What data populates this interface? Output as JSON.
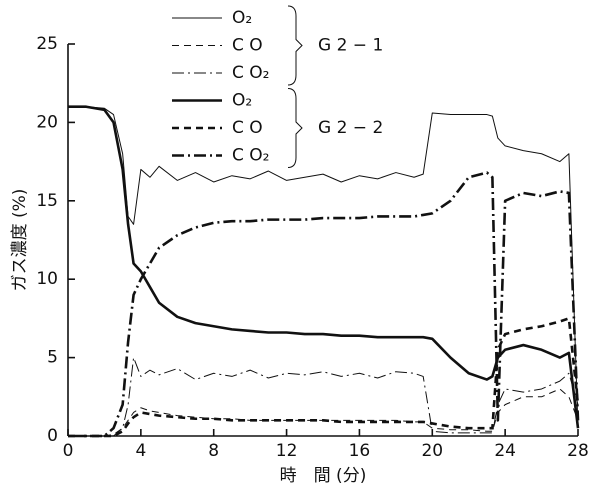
{
  "chart_data": {
    "type": "line",
    "x_label": "時　間 (分)",
    "y_label": "ガス濃度 (%)",
    "x": [
      0,
      1,
      2,
      2.5,
      3,
      3.3,
      3.6,
      4,
      4.5,
      5,
      6,
      7,
      8,
      9,
      10,
      11,
      12,
      13,
      14,
      15,
      16,
      17,
      18,
      19,
      19.5,
      20,
      21,
      22,
      23,
      23.3,
      23.6,
      24,
      25,
      26,
      27,
      27.5,
      28
    ],
    "series": [
      {
        "name": "O₂",
        "color": "#111111",
        "width": 1,
        "dash": "solid",
        "values": [
          21,
          21,
          20.9,
          20.5,
          18,
          14,
          13.5,
          17,
          16.5,
          17.2,
          16.3,
          16.8,
          16.2,
          16.6,
          16.4,
          16.9,
          16.3,
          16.5,
          16.7,
          16.2,
          16.6,
          16.4,
          16.8,
          16.5,
          16.7,
          20.6,
          20.5,
          20.5,
          20.5,
          20.4,
          19,
          18.5,
          18.2,
          18,
          17.5,
          18,
          0.5
        ]
      },
      {
        "name": "C O",
        "color": "#111111",
        "width": 1,
        "dash": "dashed",
        "values": [
          0,
          0,
          0,
          0.1,
          0.5,
          1,
          1.5,
          1.8,
          1.6,
          1.5,
          1.3,
          1.2,
          1.1,
          1.1,
          1,
          1,
          1,
          1,
          1,
          1,
          1,
          1,
          1,
          0.9,
          0.9,
          0.5,
          0.4,
          0.4,
          0.3,
          0.3,
          1.5,
          2,
          2.5,
          2.5,
          3,
          2.5,
          1
        ]
      },
      {
        "name": "C O₂",
        "color": "#111111",
        "width": 1,
        "dash": "dashdot",
        "values": [
          0,
          0,
          0,
          0,
          0.5,
          2,
          5,
          3.8,
          4.2,
          3.9,
          4.3,
          3.6,
          4,
          3.8,
          4.2,
          3.7,
          4,
          3.9,
          4.1,
          3.8,
          4,
          3.7,
          4.1,
          4,
          3.8,
          0.3,
          0.2,
          0.2,
          0.2,
          0.2,
          2,
          3,
          2.8,
          3,
          3.5,
          4,
          2
        ]
      },
      {
        "name": "O₂",
        "color": "#111111",
        "width": 2.6,
        "dash": "solid",
        "values": [
          21,
          21,
          20.8,
          20,
          17,
          13.5,
          11,
          10.5,
          9.5,
          8.5,
          7.6,
          7.2,
          7,
          6.8,
          6.7,
          6.6,
          6.6,
          6.5,
          6.5,
          6.4,
          6.4,
          6.3,
          6.3,
          6.3,
          6.3,
          6.2,
          5,
          4,
          3.6,
          3.8,
          5,
          5.5,
          5.8,
          5.5,
          5,
          5.3,
          0.5
        ]
      },
      {
        "name": "C O",
        "color": "#111111",
        "width": 2.6,
        "dash": "dashed",
        "values": [
          0,
          0,
          0,
          0,
          0.3,
          0.8,
          1.2,
          1.5,
          1.4,
          1.3,
          1.2,
          1.1,
          1.1,
          1,
          1,
          1,
          1,
          1,
          1,
          0.9,
          0.9,
          0.9,
          0.9,
          0.9,
          0.9,
          0.8,
          0.6,
          0.5,
          0.5,
          0.5,
          5.5,
          6.5,
          6.8,
          7,
          7.3,
          7.5,
          2
        ]
      },
      {
        "name": "C O₂",
        "color": "#111111",
        "width": 2.6,
        "dash": "dashdot",
        "values": [
          0,
          0,
          0,
          0.5,
          2,
          6,
          9,
          10,
          11,
          12,
          12.8,
          13.3,
          13.6,
          13.7,
          13.7,
          13.8,
          13.8,
          13.8,
          13.9,
          13.9,
          13.9,
          14,
          14,
          14,
          14.1,
          14.2,
          15,
          16.5,
          16.8,
          16.5,
          1,
          15,
          15.5,
          15.3,
          15.6,
          15.5,
          1
        ]
      }
    ],
    "legend_groups": [
      "G 2 − 1",
      "G 2 − 2"
    ],
    "xlim": [
      0,
      28
    ],
    "xticks": [
      0,
      4,
      8,
      12,
      16,
      20,
      24,
      28
    ],
    "ylim": [
      0,
      25
    ],
    "yticks": [
      0,
      5,
      10,
      15,
      20,
      25
    ]
  }
}
